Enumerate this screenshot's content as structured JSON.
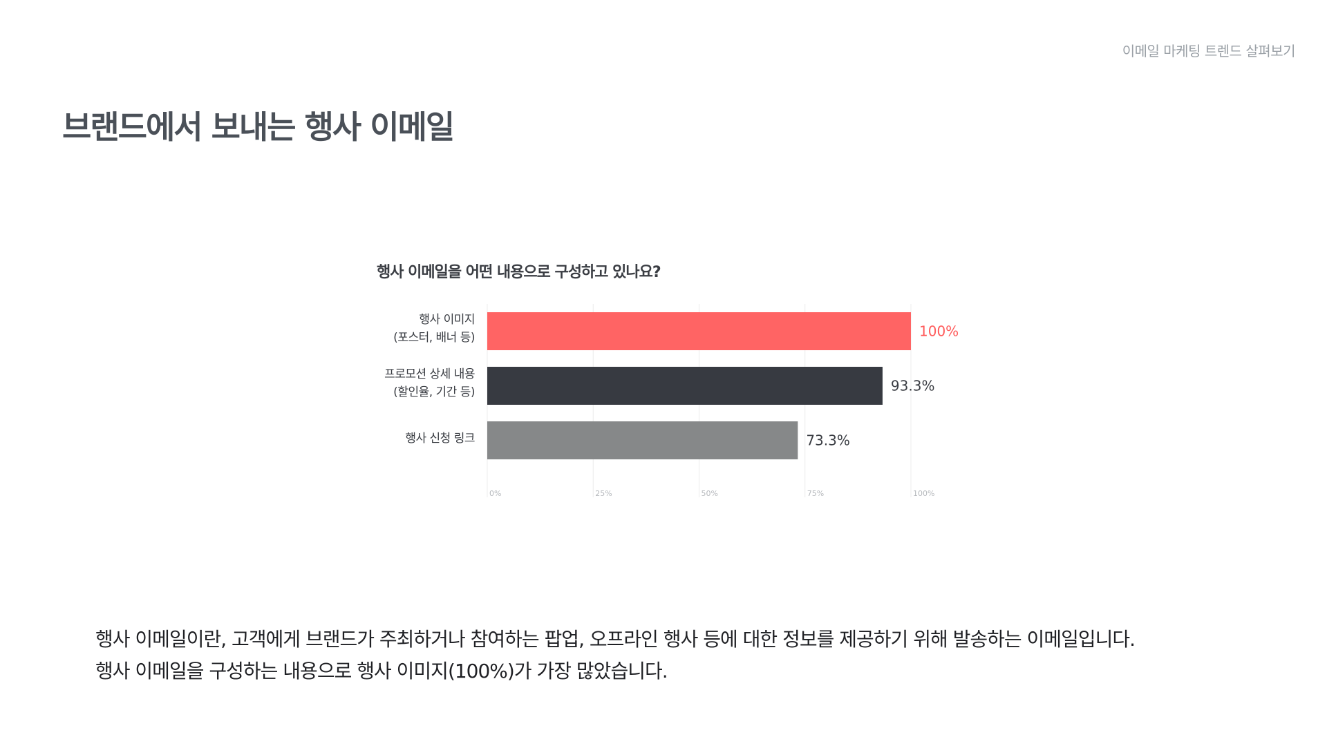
{
  "header": {
    "section_label": "이메일 마케팅 트렌드 살펴보기"
  },
  "page": {
    "title": "브랜드에서 보내는 행사 이메일"
  },
  "chart_data": {
    "type": "bar",
    "orientation": "horizontal",
    "title": "행사 이메일을 어떤 내용으로 구성하고 있나요?",
    "categories": [
      [
        "행사 이미지",
        "(포스터, 배너 등)"
      ],
      [
        "프로모션 상세 내용",
        "(할인율, 기간 등)"
      ],
      [
        "행사 신청 링크"
      ]
    ],
    "values": [
      100,
      93.3,
      73.3
    ],
    "value_labels": [
      "100%",
      "93.3%",
      "73.3%"
    ],
    "colors": [
      "#ff6464",
      "#373a41",
      "#868889"
    ],
    "label_colors": [
      "#ff5a5a",
      "#3a3d43",
      "#3a3d43"
    ],
    "xlim": [
      0,
      100
    ],
    "xticks": [
      "0%",
      "25%",
      "50%",
      "75%",
      "100%"
    ],
    "grid": true
  },
  "description": {
    "line1": "행사 이메일이란, 고객에게 브랜드가 주최하거나 참여하는 팝업, 오프라인 행사 등에 대한 정보를 제공하기 위해 발송하는 이메일입니다.",
    "line2": "행사 이메일을 구성하는 내용으로 행사 이미지(100%)가 가장 많았습니다."
  }
}
